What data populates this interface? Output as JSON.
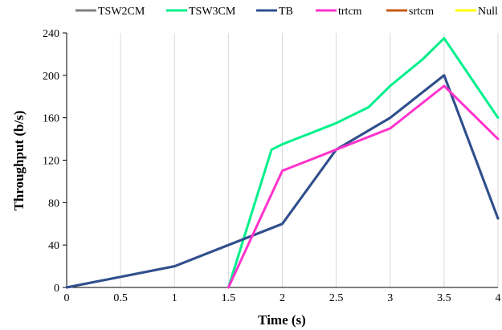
{
  "chart_data": {
    "type": "line",
    "xlabel": "Time (s)",
    "ylabel": "Throughput (b/s)",
    "xlim": [
      0,
      4
    ],
    "ylim": [
      0,
      240
    ],
    "x_ticks": [
      "0",
      "0.5",
      "1",
      "1.5",
      "2",
      "2.5",
      "3",
      "3.5",
      "4"
    ],
    "y_ticks": [
      "0",
      "40",
      "80",
      "120",
      "160",
      "200",
      "240"
    ],
    "grid": "vertical",
    "legend": "top",
    "series": [
      {
        "name": "TSW2CM",
        "color": "#808080",
        "x": [
          0,
          1,
          1.5,
          2,
          2.5,
          3,
          3.5,
          4
        ],
        "y": [
          0,
          20,
          40,
          60,
          130,
          160,
          200,
          65
        ]
      },
      {
        "name": "TSW3CM",
        "color": "#00f08c",
        "x": [
          1.5,
          1.9,
          2,
          2.5,
          2.8,
          3,
          3.3,
          3.5,
          4
        ],
        "y": [
          0,
          130,
          135,
          155,
          170,
          190,
          215,
          235,
          160
        ]
      },
      {
        "name": "TB",
        "color": "#2f4f8f",
        "x": [
          0,
          1,
          1.5,
          2,
          2.5,
          3,
          3.5,
          4
        ],
        "y": [
          0,
          20,
          40,
          60,
          130,
          160,
          200,
          65
        ]
      },
      {
        "name": "trtcm",
        "color": "#ff33cc",
        "x": [
          1.5,
          2,
          2.5,
          3,
          3.5,
          4
        ],
        "y": [
          0,
          110,
          130,
          150,
          190,
          140
        ]
      },
      {
        "name": "srtcm",
        "color": "#c55a11",
        "x": [],
        "y": []
      },
      {
        "name": "Null",
        "color": "#ffff00",
        "x": [],
        "y": []
      }
    ]
  }
}
